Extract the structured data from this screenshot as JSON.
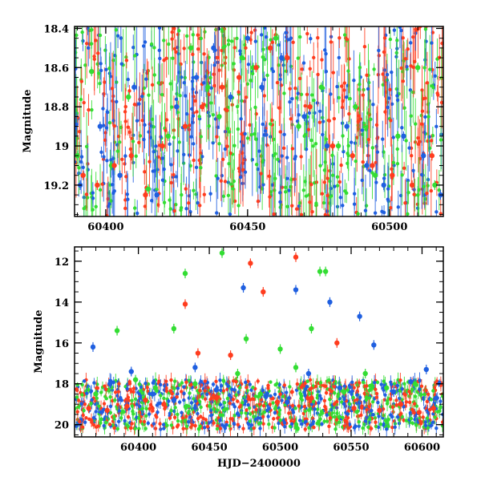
{
  "chart_data": [
    {
      "type": "scatter",
      "title": "",
      "xlabel": "",
      "ylabel": "Magnitude",
      "xlim": [
        60389,
        60519
      ],
      "ylim": [
        19.36,
        18.39
      ],
      "y_inverted": true,
      "error_bars": true,
      "xticks": [
        60400,
        60450,
        60500
      ],
      "xtick_labels": [
        "60400",
        "60450",
        "60500"
      ],
      "yticks": [
        18.4,
        18.6,
        18.8,
        19.0,
        19.2
      ],
      "ytick_labels": [
        "18.4",
        "18.6",
        "18.8",
        "19",
        "19.2"
      ],
      "series": [
        {
          "color": "#33dd33",
          "x": [
            60390,
            60395,
            60402,
            60408,
            60415,
            60422,
            60430,
            60436,
            60440,
            60448,
            60452,
            60460,
            60468,
            60476,
            60482,
            60488,
            60495,
            60503,
            60510,
            60516
          ],
          "y": [
            19.05,
            18.62,
            19.1,
            18.75,
            19.22,
            18.95,
            18.5,
            18.7,
            18.85,
            18.55,
            18.6,
            18.45,
            18.9,
            18.7,
            19.0,
            18.8,
            19.15,
            18.95,
            18.6,
            19.2
          ]
        },
        {
          "color": "#1f5fe0",
          "x": [
            60391,
            60398,
            60405,
            60410,
            60418,
            60425,
            60432,
            60438,
            60444,
            60450,
            60455,
            60462,
            60470,
            60478,
            60485,
            60492,
            60498,
            60505,
            60512,
            60518
          ],
          "y": [
            19.2,
            18.9,
            19.15,
            18.7,
            19.25,
            18.8,
            18.65,
            18.5,
            18.75,
            18.45,
            18.7,
            18.55,
            18.85,
            19.0,
            18.9,
            19.1,
            19.2,
            18.95,
            19.05,
            19.25
          ]
        },
        {
          "color": "#ff3c1e",
          "x": [
            60392,
            60397,
            60403,
            60409,
            60414,
            60420,
            60428,
            60434,
            60441,
            60447,
            60453,
            60458,
            60464,
            60472,
            60480,
            60487,
            60494,
            60501,
            60508,
            60515
          ],
          "y": [
            19.15,
            19.2,
            19.1,
            19.05,
            19.25,
            19.0,
            18.9,
            18.8,
            18.7,
            18.65,
            18.6,
            18.5,
            18.55,
            18.8,
            19.0,
            19.05,
            19.1,
            19.15,
            19.2,
            19.05
          ]
        }
      ]
    },
    {
      "type": "scatter",
      "title": "",
      "xlabel": "HJD−2400000",
      "ylabel": "Magnitude",
      "xlim": [
        60355,
        60615
      ],
      "ylim": [
        20.6,
        11.3
      ],
      "y_inverted": true,
      "error_bars": true,
      "xticks": [
        60400,
        60450,
        60500,
        60550,
        60600
      ],
      "xtick_labels": [
        "60400",
        "60450",
        "60500",
        "60550",
        "60600"
      ],
      "yticks": [
        12,
        14,
        16,
        18,
        20
      ],
      "ytick_labels": [
        "12",
        "14",
        "16",
        "18",
        "20"
      ],
      "series": [
        {
          "color": "#33dd33",
          "x": [
            60370,
            60385,
            60398,
            60412,
            60425,
            60433,
            60440,
            60459,
            60470,
            60476,
            60486,
            60500,
            60511,
            60522,
            60528,
            60532,
            60545,
            60560,
            60575,
            60595
          ],
          "y": [
            18.5,
            15.4,
            17.8,
            18.2,
            15.3,
            12.6,
            18.0,
            11.6,
            17.5,
            15.8,
            18.5,
            16.3,
            17.2,
            15.3,
            12.5,
            12.5,
            18.4,
            17.5,
            18.2,
            18.0
          ]
        },
        {
          "color": "#1f5fe0",
          "x": [
            60368,
            60380,
            60395,
            60410,
            60425,
            60440,
            60455,
            60474,
            60490,
            60505,
            60511,
            60520,
            60535,
            60542,
            60556,
            60566,
            60580,
            60592,
            60603,
            60610
          ],
          "y": [
            16.2,
            18.0,
            17.4,
            18.5,
            18.8,
            17.2,
            18.3,
            13.3,
            18.6,
            18.9,
            13.4,
            17.5,
            14.0,
            18.2,
            14.7,
            16.1,
            18.4,
            17.9,
            17.3,
            18.7
          ]
        },
        {
          "color": "#ff3c1e",
          "x": [
            60365,
            60378,
            60392,
            60405,
            60418,
            60433,
            60442,
            60455,
            60465,
            60479,
            60488,
            60498,
            60511,
            60522,
            60540,
            60552,
            60570,
            60585,
            60598,
            60608
          ],
          "y": [
            19.2,
            19.3,
            19.1,
            18.8,
            19.0,
            14.1,
            16.5,
            18.7,
            16.6,
            12.1,
            13.5,
            18.9,
            11.8,
            18.7,
            16.0,
            19.2,
            19.3,
            19.0,
            19.4,
            19.2
          ]
        }
      ]
    }
  ]
}
